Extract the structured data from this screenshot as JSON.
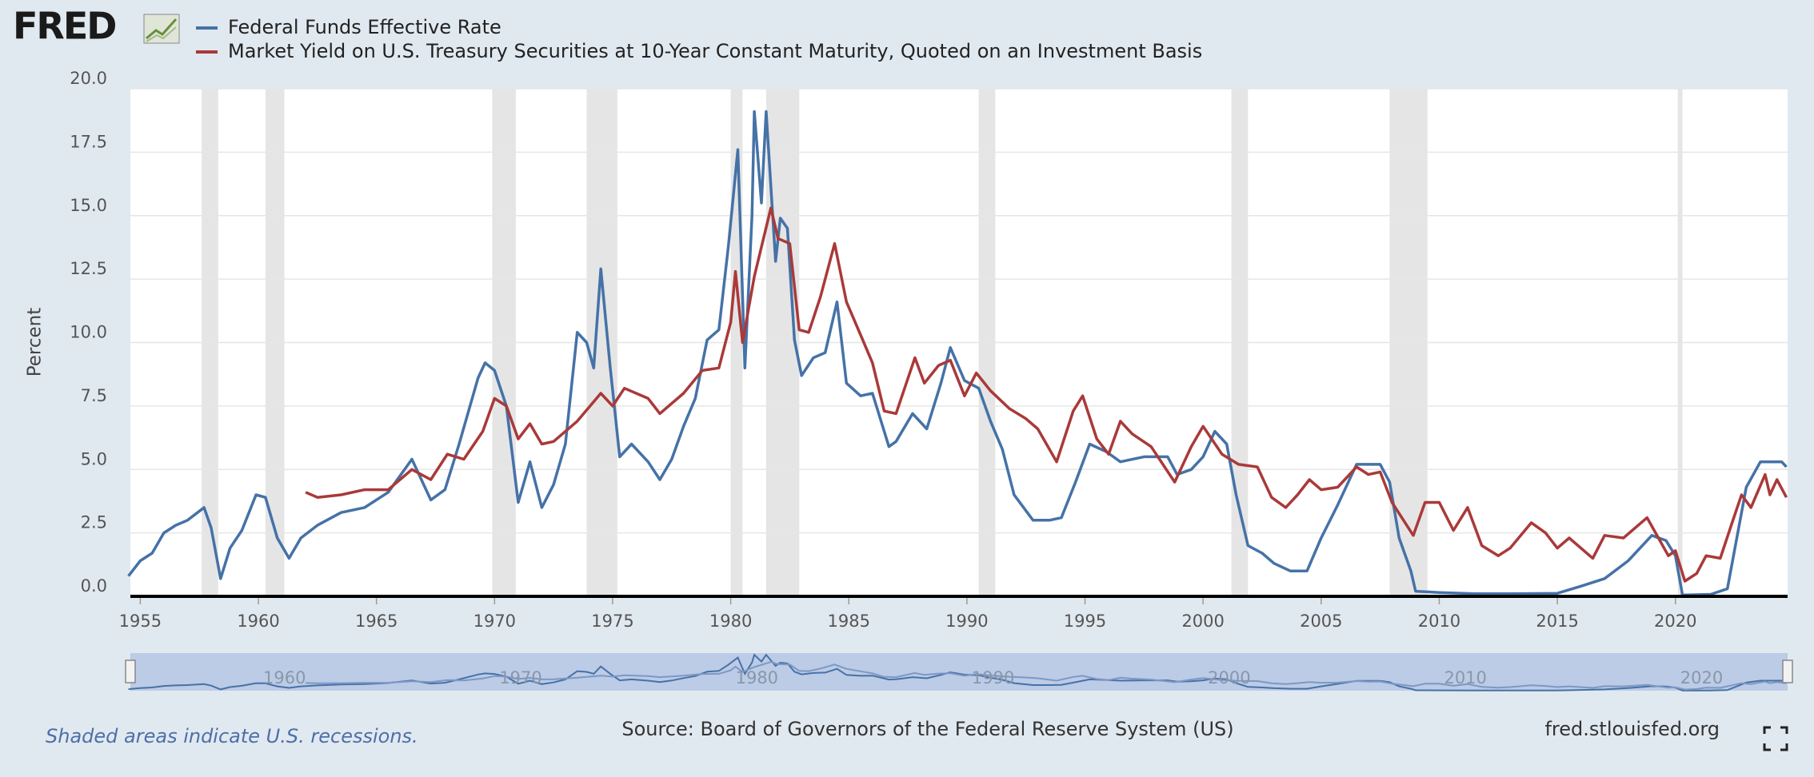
{
  "logo": "FRED",
  "chart_data": {
    "type": "line",
    "ylabel": "Percent",
    "xlim": [
      1954.58,
      2024.75
    ],
    "ylim": [
      0,
      20
    ],
    "xticks": [
      1955,
      1960,
      1965,
      1970,
      1975,
      1980,
      1985,
      1990,
      1995,
      2000,
      2005,
      2010,
      2015,
      2020
    ],
    "yticks": [
      {
        "value": 0,
        "label": "0.0"
      },
      {
        "value": 2.5,
        "label": "2.5"
      },
      {
        "value": 5,
        "label": "5.0"
      },
      {
        "value": 7.5,
        "label": "7.5"
      },
      {
        "value": 10,
        "label": "10.0"
      },
      {
        "value": 12.5,
        "label": "12.5"
      },
      {
        "value": 15,
        "label": "15.0"
      },
      {
        "value": 17.5,
        "label": "17.5"
      },
      {
        "value": 20,
        "label": "20.0"
      }
    ],
    "navigator_xticks": [
      1960,
      1970,
      1980,
      1990,
      2000,
      2010,
      2020
    ],
    "grid": true,
    "recessions": [
      [
        1957.6,
        1958.3
      ],
      [
        1960.3,
        1961.1
      ],
      [
        1969.9,
        1970.9
      ],
      [
        1973.9,
        1975.2
      ],
      [
        1980.0,
        1980.5
      ],
      [
        1981.5,
        1982.9
      ],
      [
        1990.5,
        1991.2
      ],
      [
        2001.2,
        2001.9
      ],
      [
        2007.9,
        2009.5
      ],
      [
        2020.1,
        2020.3
      ]
    ],
    "series": [
      {
        "name": "Federal Funds Effective Rate",
        "color": "#4572a7",
        "x": [
          1954.5,
          1955.0,
          1955.5,
          1956.0,
          1956.5,
          1957.0,
          1957.7,
          1958.0,
          1958.4,
          1958.8,
          1959.3,
          1959.9,
          1960.3,
          1960.8,
          1961.3,
          1961.8,
          1962.5,
          1963.5,
          1964.5,
          1965.5,
          1966.5,
          1967.3,
          1967.9,
          1968.5,
          1969.3,
          1969.6,
          1970.0,
          1970.5,
          1971.0,
          1971.5,
          1972.0,
          1972.5,
          1973.0,
          1973.5,
          1973.9,
          1974.2,
          1974.5,
          1974.9,
          1975.3,
          1975.8,
          1976.5,
          1977.0,
          1977.5,
          1978.0,
          1978.5,
          1979.0,
          1979.5,
          1979.9,
          1980.3,
          1980.6,
          1980.9,
          1981.0,
          1981.3,
          1981.5,
          1981.9,
          1982.1,
          1982.4,
          1982.7,
          1983.0,
          1983.5,
          1984.0,
          1984.5,
          1984.9,
          1985.5,
          1986.0,
          1986.7,
          1987.0,
          1987.7,
          1988.3,
          1988.9,
          1989.3,
          1989.9,
          1990.5,
          1991.0,
          1991.5,
          1992.0,
          1992.8,
          1993.5,
          1994.0,
          1994.6,
          1995.2,
          1995.9,
          1996.5,
          1997.5,
          1998.5,
          1998.9,
          1999.5,
          2000.0,
          2000.5,
          2001.0,
          2001.4,
          2001.9,
          2002.5,
          2003.0,
          2003.7,
          2004.4,
          2005.0,
          2005.7,
          2006.5,
          2007.5,
          2007.9,
          2008.3,
          2008.8,
          2009.0,
          2010.0,
          2011.5,
          2013.0,
          2015.0,
          2016.0,
          2017.0,
          2018.0,
          2019.0,
          2019.6,
          2020.0,
          2020.3,
          2021.5,
          2022.2,
          2022.6,
          2023.0,
          2023.6,
          2024.5,
          2024.7
        ],
        "values": [
          0.8,
          1.4,
          1.7,
          2.5,
          2.8,
          3.0,
          3.5,
          2.7,
          0.7,
          1.9,
          2.6,
          4.0,
          3.9,
          2.3,
          1.5,
          2.3,
          2.8,
          3.3,
          3.5,
          4.1,
          5.4,
          3.8,
          4.2,
          6.0,
          8.6,
          9.2,
          8.9,
          7.5,
          3.7,
          5.3,
          3.5,
          4.4,
          6.0,
          10.4,
          10.0,
          9.0,
          12.9,
          9.0,
          5.5,
          6.0,
          5.3,
          4.6,
          5.4,
          6.7,
          7.8,
          10.1,
          10.5,
          13.8,
          17.6,
          9.0,
          15.0,
          19.1,
          15.5,
          19.1,
          13.2,
          14.9,
          14.5,
          10.1,
          8.7,
          9.4,
          9.6,
          11.6,
          8.4,
          7.9,
          8.0,
          5.9,
          6.1,
          7.2,
          6.6,
          8.4,
          9.8,
          8.5,
          8.2,
          6.9,
          5.8,
          4.0,
          3.0,
          3.0,
          3.1,
          4.5,
          6.0,
          5.7,
          5.3,
          5.5,
          5.5,
          4.8,
          5.0,
          5.5,
          6.5,
          6.0,
          4.0,
          2.0,
          1.7,
          1.3,
          1.0,
          1.0,
          2.3,
          3.6,
          5.2,
          5.2,
          4.5,
          2.3,
          1.0,
          0.2,
          0.15,
          0.1,
          0.1,
          0.12,
          0.4,
          0.7,
          1.4,
          2.4,
          2.2,
          1.6,
          0.05,
          0.08,
          0.3,
          2.3,
          4.3,
          5.3,
          5.3,
          5.1
        ]
      },
      {
        "name": "Market Yield on U.S. Treasury Securities at 10-Year Constant Maturity, Quoted on an Investment Basis",
        "color": "#aa3939",
        "x": [
          1962.0,
          1962.5,
          1963.5,
          1964.5,
          1965.5,
          1966.5,
          1967.3,
          1968.0,
          1968.7,
          1969.5,
          1970.0,
          1970.5,
          1971.0,
          1971.5,
          1972.0,
          1972.5,
          1973.5,
          1974.5,
          1975.0,
          1975.5,
          1976.5,
          1977.0,
          1978.0,
          1978.8,
          1979.5,
          1980.0,
          1980.2,
          1980.5,
          1981.0,
          1981.7,
          1982.0,
          1982.5,
          1982.9,
          1983.3,
          1983.8,
          1984.4,
          1984.9,
          1985.5,
          1986.0,
          1986.5,
          1987.0,
          1987.8,
          1988.2,
          1988.8,
          1989.3,
          1989.9,
          1990.4,
          1991.0,
          1991.8,
          1992.5,
          1993.0,
          1993.8,
          1994.5,
          1994.9,
          1995.5,
          1996.0,
          1996.5,
          1997.0,
          1997.8,
          1998.8,
          1999.5,
          2000.0,
          2000.8,
          2001.5,
          2002.3,
          2002.9,
          2003.5,
          2004.0,
          2004.5,
          2005.0,
          2005.7,
          2006.5,
          2007.0,
          2007.5,
          2008.0,
          2008.9,
          2009.4,
          2010.0,
          2010.6,
          2011.2,
          2011.8,
          2012.5,
          2013.0,
          2013.9,
          2014.5,
          2015.0,
          2015.5,
          2016.5,
          2017.0,
          2017.8,
          2018.8,
          2019.7,
          2020.0,
          2020.4,
          2020.9,
          2021.3,
          2021.9,
          2022.4,
          2022.8,
          2023.2,
          2023.8,
          2024.0,
          2024.3,
          2024.7
        ],
        "values": [
          4.1,
          3.9,
          4.0,
          4.2,
          4.2,
          5.0,
          4.6,
          5.6,
          5.4,
          6.5,
          7.8,
          7.5,
          6.2,
          6.8,
          6.0,
          6.1,
          6.9,
          8.0,
          7.5,
          8.2,
          7.8,
          7.2,
          8.0,
          8.9,
          9.0,
          10.8,
          12.8,
          10.0,
          12.6,
          15.3,
          14.1,
          13.9,
          10.5,
          10.4,
          11.8,
          13.9,
          11.6,
          10.3,
          9.2,
          7.3,
          7.2,
          9.4,
          8.4,
          9.1,
          9.3,
          7.9,
          8.8,
          8.1,
          7.4,
          7.0,
          6.6,
          5.3,
          7.3,
          7.9,
          6.2,
          5.6,
          6.9,
          6.4,
          5.9,
          4.5,
          5.9,
          6.7,
          5.6,
          5.2,
          5.1,
          3.9,
          3.5,
          4.0,
          4.6,
          4.2,
          4.3,
          5.1,
          4.8,
          4.9,
          3.7,
          2.4,
          3.7,
          3.7,
          2.6,
          3.5,
          2.0,
          1.6,
          1.9,
          2.9,
          2.5,
          1.9,
          2.3,
          1.5,
          2.4,
          2.3,
          3.1,
          1.6,
          1.8,
          0.6,
          0.9,
          1.6,
          1.5,
          2.9,
          4.0,
          3.5,
          4.8,
          4.0,
          4.6,
          3.9
        ]
      }
    ]
  },
  "footer": {
    "note": "Shaded areas indicate U.S. recessions.",
    "source": "Source: Board of Governors of the Federal Reserve System (US)",
    "url": "fred.stlouisfed.org"
  }
}
